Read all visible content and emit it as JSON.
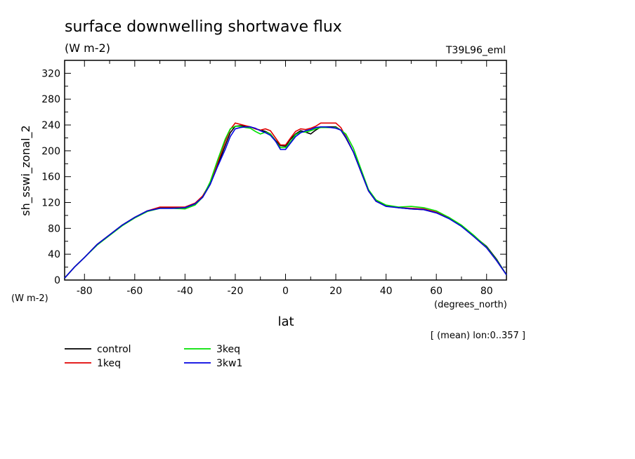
{
  "chart_data": {
    "type": "line",
    "title": "surface downwelling shortwave flux",
    "subtitle_units": "(W m-2)",
    "experiment": "T39L96_eml",
    "ylabel": "sh_sswi_zonal_2",
    "yunits": "(W m-2)",
    "xlabel": "lat",
    "xunits": "(degrees_north)",
    "note": "[ (mean) lon:0..357 ]",
    "xlim": [
      -87.9,
      87.9
    ],
    "ylim": [
      0,
      340
    ],
    "xticks": [
      -80,
      -60,
      -40,
      -20,
      0,
      20,
      40,
      60,
      80
    ],
    "yticks": [
      0,
      40,
      80,
      120,
      160,
      200,
      240,
      280,
      320
    ],
    "legend_placement": "bottom-left",
    "series": [
      {
        "name": "control",
        "color": "#000000",
        "x": [
          -87.9,
          -84,
          -80,
          -75,
          -70,
          -65,
          -60,
          -55,
          -50,
          -45,
          -40,
          -36,
          -33,
          -30,
          -27,
          -24,
          -22,
          -20,
          -18,
          -16,
          -14,
          -12,
          -10,
          -8,
          -6,
          -4,
          -2,
          0,
          2,
          4,
          6,
          8,
          10,
          12,
          14,
          16,
          18,
          20,
          22,
          24,
          27,
          30,
          33,
          36,
          40,
          45,
          50,
          55,
          60,
          65,
          70,
          75,
          80,
          84,
          87.9
        ],
        "y": [
          3,
          20,
          35,
          55,
          70,
          85,
          97,
          107,
          112,
          112,
          112,
          118,
          128,
          148,
          178,
          208,
          228,
          238,
          239,
          238,
          237,
          234,
          232,
          230,
          226,
          216,
          208,
          207,
          218,
          226,
          231,
          229,
          226,
          232,
          237,
          237,
          237,
          237,
          232,
          220,
          198,
          168,
          138,
          122,
          115,
          112,
          110,
          109,
          104,
          96,
          84,
          68,
          52,
          32,
          8
        ]
      },
      {
        "name": "1keq",
        "color": "#e00000",
        "x": [
          -87.9,
          -84,
          -80,
          -75,
          -70,
          -65,
          -60,
          -55,
          -50,
          -45,
          -40,
          -36,
          -33,
          -30,
          -27,
          -24,
          -22,
          -20,
          -18,
          -16,
          -14,
          -12,
          -10,
          -8,
          -6,
          -4,
          -2,
          0,
          2,
          4,
          6,
          8,
          10,
          12,
          14,
          16,
          18,
          20,
          22,
          24,
          27,
          30,
          33,
          36,
          40,
          45,
          50,
          55,
          60,
          65,
          70,
          75,
          80,
          84,
          87.9
        ],
        "y": [
          3,
          20,
          35,
          55,
          70,
          85,
          97,
          107,
          113,
          113,
          113,
          119,
          130,
          150,
          182,
          214,
          233,
          243,
          241,
          239,
          237,
          234,
          232,
          234,
          231,
          220,
          209,
          209,
          220,
          230,
          234,
          233,
          235,
          238,
          243,
          243,
          243,
          243,
          236,
          222,
          198,
          168,
          138,
          122,
          115,
          112,
          111,
          110,
          105,
          97,
          84,
          67,
          50,
          30,
          8
        ]
      },
      {
        "name": "3keq",
        "color": "#00e000",
        "x": [
          -87.9,
          -84,
          -80,
          -75,
          -70,
          -65,
          -60,
          -55,
          -50,
          -45,
          -40,
          -36,
          -33,
          -30,
          -27,
          -24,
          -22,
          -20,
          -18,
          -16,
          -14,
          -12,
          -10,
          -8,
          -6,
          -4,
          -2,
          0,
          2,
          4,
          6,
          8,
          10,
          12,
          14,
          16,
          18,
          20,
          22,
          24,
          27,
          30,
          33,
          36,
          40,
          45,
          50,
          55,
          60,
          65,
          70,
          75,
          80,
          84,
          87.9
        ],
        "y": [
          3,
          20,
          35,
          54,
          69,
          84,
          96,
          106,
          111,
          111,
          110,
          116,
          128,
          152,
          186,
          218,
          234,
          238,
          238,
          236,
          235,
          230,
          226,
          229,
          226,
          215,
          205,
          205,
          214,
          225,
          229,
          229,
          231,
          234,
          236,
          236,
          236,
          236,
          232,
          226,
          204,
          172,
          140,
          124,
          116,
          113,
          114,
          112,
          107,
          97,
          85,
          69,
          51,
          31,
          8
        ]
      },
      {
        "name": "3kw1",
        "color": "#0000e0",
        "x": [
          -87.9,
          -84,
          -80,
          -75,
          -70,
          -65,
          -60,
          -55,
          -50,
          -45,
          -40,
          -36,
          -33,
          -30,
          -27,
          -24,
          -22,
          -20,
          -18,
          -16,
          -14,
          -12,
          -10,
          -8,
          -6,
          -4,
          -2,
          0,
          2,
          4,
          6,
          8,
          10,
          12,
          14,
          16,
          18,
          20,
          22,
          24,
          27,
          30,
          33,
          36,
          40,
          45,
          50,
          55,
          60,
          65,
          70,
          75,
          80,
          84,
          87.9
        ],
        "y": [
          3,
          20,
          35,
          55,
          70,
          85,
          97,
          107,
          111,
          111,
          112,
          118,
          128,
          148,
          176,
          202,
          222,
          234,
          236,
          237,
          237,
          235,
          231,
          228,
          224,
          215,
          202,
          202,
          212,
          222,
          228,
          231,
          233,
          236,
          237,
          237,
          236,
          235,
          232,
          221,
          198,
          168,
          138,
          122,
          114,
          112,
          110,
          109,
          104,
          95,
          83,
          67,
          50,
          30,
          8
        ]
      }
    ]
  }
}
